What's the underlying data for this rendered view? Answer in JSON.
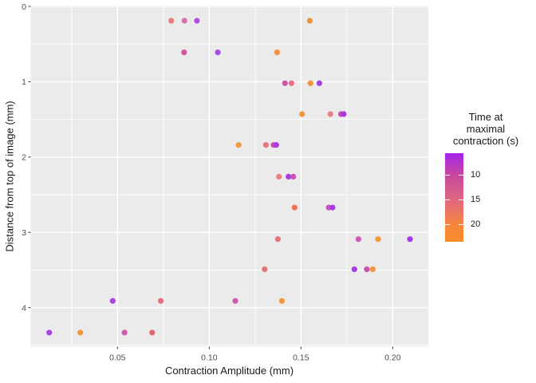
{
  "chart_data": {
    "type": "scatter",
    "title": "",
    "xlabel": "Contraction Amplitude (mm)",
    "ylabel": "Distance from top of image (mm)",
    "xlim": [
      0.0027,
      0.2194
    ],
    "ylim": [
      -0.011,
      4.518
    ],
    "y_axis_reversed": true,
    "grid": true,
    "panel_bg": "#EBEBEB",
    "grid_color": "#FFFFFF",
    "axis_text_color": "#4D4D4D",
    "axis_title_color": "#1A1A1A",
    "tick_mark_color": "#333333",
    "x_ticks": [
      {
        "v": 0.05,
        "label": "0.05"
      },
      {
        "v": 0.1,
        "label": "0.10"
      },
      {
        "v": 0.15,
        "label": "0.15"
      },
      {
        "v": 0.2,
        "label": "0.20"
      }
    ],
    "y_ticks": [
      {
        "v": 0,
        "label": "0"
      },
      {
        "v": 1,
        "label": "1"
      },
      {
        "v": 2,
        "label": "2"
      },
      {
        "v": 3,
        "label": "3"
      },
      {
        "v": 4,
        "label": "4"
      }
    ],
    "x_minor": [
      0.025,
      0.075,
      0.125,
      0.175
    ],
    "y_minor": [
      0.5,
      1.5,
      2.5,
      3.5,
      4.5
    ],
    "legend": {
      "title_lines": [
        "Time at",
        "maximal",
        "contraction (s)"
      ],
      "position": "right",
      "range": [
        5.6,
        23.4
      ],
      "ticks": [
        {
          "v": 10,
          "label": "10"
        },
        {
          "v": 15,
          "label": "15"
        },
        {
          "v": 20,
          "label": "20"
        }
      ],
      "gradient_stops": [
        {
          "v": 5.6,
          "color": "#A524EE"
        },
        {
          "v": 10,
          "color": "#C6479D"
        },
        {
          "v": 15,
          "color": "#E16781"
        },
        {
          "v": 20,
          "color": "#F5863D"
        },
        {
          "v": 23.4,
          "color": "#FA8E29"
        }
      ]
    },
    "points": [
      {
        "x": 0.0793,
        "y": 0.19,
        "t": 16,
        "color": "#E87E79"
      },
      {
        "x": 0.0865,
        "y": 0.19,
        "t": 12.5,
        "color": "#D96FAD"
      },
      {
        "x": 0.0933,
        "y": 0.19,
        "t": 8,
        "color": "#B44DE8"
      },
      {
        "x": 0.1548,
        "y": 0.19,
        "t": 21.5,
        "color": "#F09138"
      },
      {
        "x": 0.0863,
        "y": 0.61,
        "t": 12.5,
        "color": "#D6549C"
      },
      {
        "x": 0.1047,
        "y": 0.61,
        "t": 7.5,
        "color": "#A94AE3"
      },
      {
        "x": 0.137,
        "y": 0.61,
        "t": 21.5,
        "color": "#F29240"
      },
      {
        "x": 0.1413,
        "y": 1.02,
        "t": 11.5,
        "color": "#C75AA3"
      },
      {
        "x": 0.1448,
        "y": 1.02,
        "t": 15,
        "color": "#E57287"
      },
      {
        "x": 0.1552,
        "y": 1.02,
        "t": 21.5,
        "color": "#F0953B"
      },
      {
        "x": 0.16,
        "y": 1.02,
        "t": 7,
        "color": "#A63FE3"
      },
      {
        "x": 0.1506,
        "y": 1.43,
        "t": 21.5,
        "color": "#F2953C"
      },
      {
        "x": 0.166,
        "y": 1.43,
        "t": 15,
        "color": "#E87F85"
      },
      {
        "x": 0.1718,
        "y": 1.43,
        "t": 11.5,
        "color": "#C24FA8"
      },
      {
        "x": 0.1733,
        "y": 1.43,
        "t": 8,
        "color": "#AD36E3"
      },
      {
        "x": 0.116,
        "y": 1.84,
        "t": 21,
        "color": "#F29A43"
      },
      {
        "x": 0.1309,
        "y": 1.84,
        "t": 16,
        "color": "#E4797B"
      },
      {
        "x": 0.1351,
        "y": 1.84,
        "t": 11.5,
        "color": "#C84FA5"
      },
      {
        "x": 0.1365,
        "y": 1.84,
        "t": 8,
        "color": "#B13BE8"
      },
      {
        "x": 0.138,
        "y": 2.26,
        "t": 16,
        "color": "#E8837F"
      },
      {
        "x": 0.1432,
        "y": 2.26,
        "t": 8,
        "color": "#AC3BE3"
      },
      {
        "x": 0.1458,
        "y": 2.26,
        "t": 11,
        "color": "#CC51B8"
      },
      {
        "x": 0.1465,
        "y": 2.67,
        "t": 18.5,
        "color": "#EE7553"
      },
      {
        "x": 0.1651,
        "y": 2.67,
        "t": 11,
        "color": "#CA55BE"
      },
      {
        "x": 0.1672,
        "y": 2.67,
        "t": 7.5,
        "color": "#A83BE8"
      },
      {
        "x": 0.1374,
        "y": 3.09,
        "t": 16,
        "color": "#E5737B"
      },
      {
        "x": 0.1813,
        "y": 3.09,
        "t": 11,
        "color": "#CE5BB5"
      },
      {
        "x": 0.192,
        "y": 3.09,
        "t": 21,
        "color": "#F29A38"
      },
      {
        "x": 0.2094,
        "y": 3.09,
        "t": 7,
        "color": "#A63BF0"
      },
      {
        "x": 0.1302,
        "y": 3.49,
        "t": 16,
        "color": "#E5737B"
      },
      {
        "x": 0.1791,
        "y": 3.49,
        "t": 7.5,
        "color": "#A93BE8"
      },
      {
        "x": 0.1859,
        "y": 3.49,
        "t": 11.5,
        "color": "#C94FB0"
      },
      {
        "x": 0.1891,
        "y": 3.49,
        "t": 21.5,
        "color": "#F1953C"
      },
      {
        "x": 0.0474,
        "y": 3.91,
        "t": 7.5,
        "color": "#A644E0"
      },
      {
        "x": 0.0736,
        "y": 3.91,
        "t": 15.5,
        "color": "#E56E80"
      },
      {
        "x": 0.1142,
        "y": 3.91,
        "t": 11.5,
        "color": "#C95BB0"
      },
      {
        "x": 0.1396,
        "y": 3.91,
        "t": 21.5,
        "color": "#F2953C"
      },
      {
        "x": 0.0128,
        "y": 4.33,
        "t": 7.5,
        "color": "#A844E0"
      },
      {
        "x": 0.0297,
        "y": 4.33,
        "t": 21.5,
        "color": "#F2953C"
      },
      {
        "x": 0.0538,
        "y": 4.33,
        "t": 11.5,
        "color": "#CC5BB0"
      },
      {
        "x": 0.0689,
        "y": 4.33,
        "t": 16,
        "color": "#E56670"
      }
    ]
  }
}
